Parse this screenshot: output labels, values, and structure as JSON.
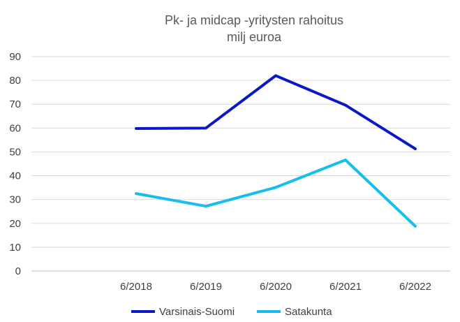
{
  "chart_data": {
    "type": "line",
    "title": "Pk- ja midcap -yritysten rahoitus",
    "subtitle": "milj euroa",
    "categories": [
      "",
      "6/2018",
      "6/2019",
      "6/2020",
      "6/2021",
      "6/2022"
    ],
    "ylim": [
      0,
      90
    ],
    "yticks": [
      0,
      10,
      20,
      30,
      40,
      50,
      60,
      70,
      80,
      90
    ],
    "grid": true,
    "legend_position": "bottom",
    "series": [
      {
        "name": "Varsinais-Suomi",
        "color": "#0A19C8",
        "values": [
          null,
          59.8,
          60.0,
          82.0,
          69.6,
          51.3
        ]
      },
      {
        "name": "Satakunta",
        "color": "#16BDF0",
        "values": [
          null,
          32.5,
          27.2,
          35.1,
          46.6,
          18.8
        ]
      }
    ]
  }
}
